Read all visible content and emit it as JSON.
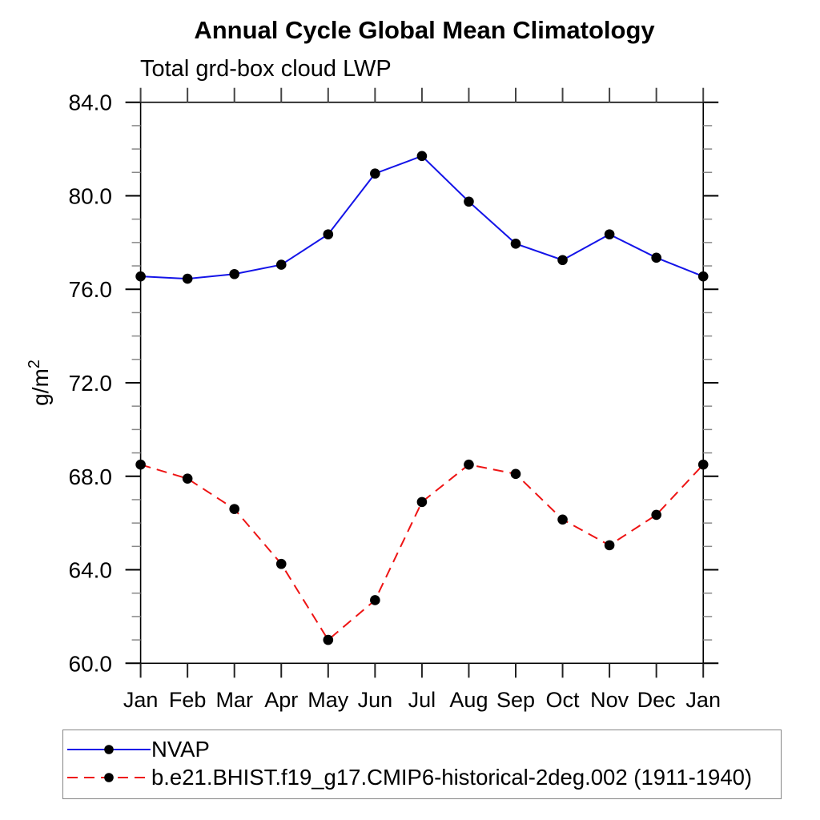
{
  "title": "Annual Cycle Global Mean Climatology",
  "subtitle": "Total grd-box cloud LWP",
  "chart_data": {
    "type": "line",
    "title": "Annual Cycle Global Mean Climatology",
    "subtitle": "Total grd-box cloud LWP",
    "ylabel": "g/m²",
    "xlabel": "",
    "categories": [
      "Jan",
      "Feb",
      "Mar",
      "Apr",
      "May",
      "Jun",
      "Jul",
      "Aug",
      "Sep",
      "Oct",
      "Nov",
      "Dec",
      "Jan"
    ],
    "series": [
      {
        "name": "NVAP",
        "color": "#1414e8",
        "style": "solid",
        "marker": "circle",
        "marker_color": "#000000",
        "values": [
          76.55,
          76.45,
          76.65,
          77.05,
          78.35,
          80.95,
          81.7,
          79.75,
          77.95,
          77.25,
          78.35,
          77.35,
          76.55
        ]
      },
      {
        "name": "b.e21.BHIST.f19_g17.CMIP6-historical-2deg.002 (1911-1940)",
        "color": "#ee1414",
        "style": "dashed",
        "marker": "circle",
        "marker_color": "#000000",
        "values": [
          68.5,
          67.9,
          66.6,
          64.25,
          61.0,
          62.7,
          66.9,
          68.5,
          68.1,
          66.15,
          65.05,
          66.35,
          68.5
        ]
      }
    ],
    "ylim": [
      60,
      84
    ],
    "ytick_major": [
      60,
      64,
      68,
      72,
      76,
      80,
      84
    ],
    "ytick_minor_step": 1,
    "grid": "off",
    "legend_position": "bottom-left-box",
    "frame_color": "#000000",
    "minor_tick_color": "#888888"
  },
  "legend": {
    "entries": [
      {
        "label": "NVAP"
      },
      {
        "label": "b.e21.BHIST.f19_g17.CMIP6-historical-2deg.002 (1911-1940)"
      }
    ]
  }
}
